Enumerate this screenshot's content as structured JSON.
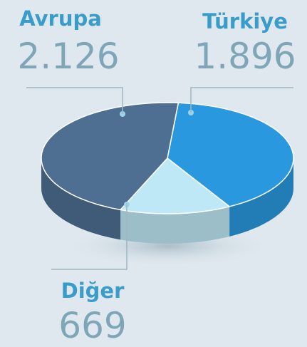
{
  "chart_data": {
    "type": "pie",
    "categories": [
      "Türkiye",
      "Diğer",
      "Avrupa"
    ],
    "values": [
      1896,
      669,
      2126
    ],
    "value_labels": [
      "1.896",
      "669",
      "2.126"
    ],
    "colors": [
      "#2a98de",
      "#bfe8f6",
      "#4f6f92"
    ]
  }
}
